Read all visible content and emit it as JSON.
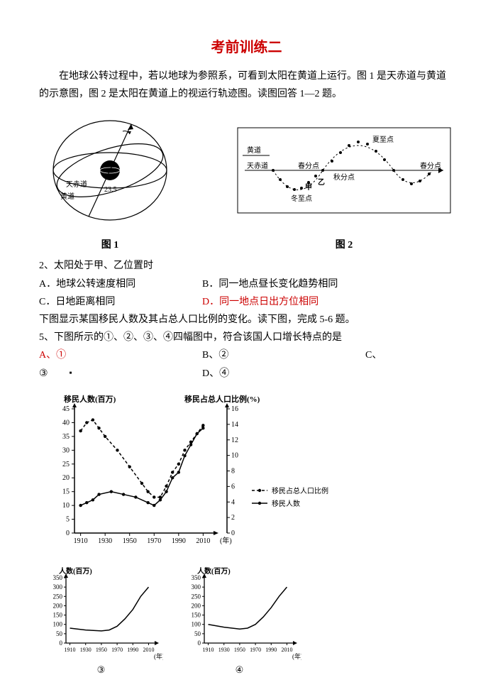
{
  "title": "考前训练二",
  "intro": "在地球公转过程中，若以地球为参照系，可看到太阳在黄道上运行。图 1 是天赤道与黄道的示意图，图 2 是太阳在黄道上的视运行轨迹图。读图回答 1—2 题。",
  "fig1_caption": "图 1",
  "fig2_caption": "图 2",
  "fig1_labels": {
    "tcd": "天赤道",
    "hd": "黄道",
    "angle": "23.5"
  },
  "fig2_labels": {
    "hd": "黄道",
    "tcd": "天赤道",
    "cf": "春分点",
    "xz": "夏至点",
    "qf": "秋分点",
    "dz": "冬至点",
    "jia": "甲",
    "yi": "乙"
  },
  "q2": "2、太阳处于甲、乙位置时",
  "q2a": "A．地球公转速度相同",
  "q2b": "B．同一地点昼长变化趋势相同",
  "q2c": "C．日地距离相同",
  "q2d": "D．同一地点日出方位相同",
  "intro2": "下图显示某国移民人数及其占总人口比例的变化。读下图，完成 5-6 题。",
  "q5": "5、下图所示的①、②、③、④四幅图中，符合该国人口增长特点的是",
  "q5a": "A、①",
  "q5b": "B、②",
  "q5c": "C、",
  "q5c2": "③",
  "q5d": "D、④",
  "mainchart": {
    "y1_title": "移民人数(百万)",
    "y2_title": "移民占总人口比例(%)",
    "x_title": "(年)",
    "y1_ticks": [
      0,
      5,
      10,
      15,
      20,
      25,
      30,
      35,
      40,
      45
    ],
    "y2_ticks": [
      0,
      2,
      4,
      6,
      8,
      10,
      12,
      14,
      16
    ],
    "x_ticks": [
      1910,
      1930,
      1950,
      1970,
      1990,
      2010
    ],
    "legend_ratio": "移民占总人口比例",
    "legend_count": "移民人数",
    "series_count": [
      [
        1910,
        10
      ],
      [
        1915,
        11
      ],
      [
        1920,
        12
      ],
      [
        1925,
        14
      ],
      [
        1935,
        15
      ],
      [
        1945,
        14
      ],
      [
        1955,
        13
      ],
      [
        1965,
        11
      ],
      [
        1970,
        10
      ],
      [
        1975,
        12
      ],
      [
        1980,
        15
      ],
      [
        1985,
        20
      ],
      [
        1990,
        22
      ],
      [
        1995,
        28
      ],
      [
        2000,
        32
      ],
      [
        2005,
        36
      ],
      [
        2010,
        38
      ]
    ],
    "series_ratio": [
      [
        1910,
        37
      ],
      [
        1915,
        40
      ],
      [
        1920,
        41
      ],
      [
        1925,
        38
      ],
      [
        1930,
        35
      ],
      [
        1940,
        30
      ],
      [
        1950,
        24
      ],
      [
        1960,
        18
      ],
      [
        1965,
        15
      ],
      [
        1970,
        13
      ],
      [
        1975,
        13
      ],
      [
        1980,
        17
      ],
      [
        1985,
        22
      ],
      [
        1990,
        25
      ],
      [
        1995,
        30
      ],
      [
        2000,
        33
      ],
      [
        2005,
        36
      ],
      [
        2010,
        39
      ]
    ],
    "ratio_scale_max": 45,
    "colors": {
      "axis": "#000000",
      "line": "#000000"
    }
  },
  "subchart": {
    "y_title": "人数(百万)",
    "x_title": "(年)",
    "y_ticks": [
      0,
      50,
      100,
      150,
      200,
      250,
      300,
      350
    ],
    "x_ticks": [
      1910,
      1930,
      1950,
      1970,
      1990,
      2010
    ],
    "series3": [
      [
        1910,
        80
      ],
      [
        1930,
        70
      ],
      [
        1950,
        65
      ],
      [
        1960,
        70
      ],
      [
        1970,
        90
      ],
      [
        1980,
        130
      ],
      [
        1990,
        180
      ],
      [
        2000,
        250
      ],
      [
        2010,
        300
      ]
    ],
    "series4": [
      [
        1910,
        100
      ],
      [
        1930,
        85
      ],
      [
        1950,
        75
      ],
      [
        1960,
        80
      ],
      [
        1970,
        100
      ],
      [
        1980,
        140
      ],
      [
        1990,
        190
      ],
      [
        2000,
        250
      ],
      [
        2010,
        300
      ]
    ]
  },
  "sub3_label": "③",
  "sub4_label": "④"
}
